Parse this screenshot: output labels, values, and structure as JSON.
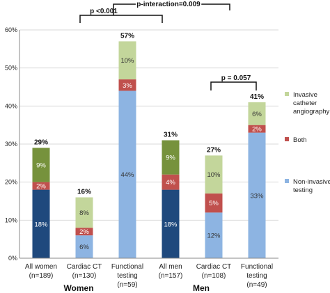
{
  "chart_data": {
    "type": "bar",
    "stacked": true,
    "ylim": [
      0,
      60
    ],
    "y_ticks": [
      "0%",
      "10%",
      "20%",
      "30%",
      "40%",
      "50%",
      "60%"
    ],
    "grid": "horizontal",
    "legend_position": "right",
    "categories": [
      {
        "line1": "All women",
        "line2": "(n=189)",
        "group": "women",
        "dark": true
      },
      {
        "line1": "Cardiac CT",
        "line2": "(n=130)",
        "group": "women",
        "dark": false
      },
      {
        "line1": "Functional",
        "line2": "testing",
        "line3": "(n=59)",
        "group": "women",
        "dark": false
      },
      {
        "line1": "All men",
        "line2": "(n=157)",
        "group": "men",
        "dark": true
      },
      {
        "line1": "Cardiac CT",
        "line2": "(n=108)",
        "group": "men",
        "dark": false
      },
      {
        "line1": "Functional",
        "line2": "testing",
        "line3": "(n=49)",
        "group": "men",
        "dark": false
      }
    ],
    "series": [
      {
        "name": "Non-invasive testing",
        "values": [
          18,
          6,
          44,
          18,
          12,
          33
        ],
        "labels": [
          "18%",
          "6%",
          "44%",
          "18%",
          "12%",
          "33%"
        ],
        "colors": {
          "dark": "#1f497d",
          "light": "#8db4e2"
        }
      },
      {
        "name": "Both",
        "values": [
          2,
          2,
          3,
          4,
          5,
          2
        ],
        "labels": [
          "2%",
          "2%",
          "3%",
          "4%",
          "5%",
          "2%"
        ],
        "colors": {
          "dark": "#c0504d",
          "light": "#c0504d"
        }
      },
      {
        "name": "Invasive catheter angiography",
        "values": [
          9,
          8,
          10,
          9,
          10,
          6
        ],
        "labels": [
          "9%",
          "8%",
          "10%",
          "9%",
          "10%",
          "6%"
        ],
        "colors": {
          "dark": "#76923c",
          "light": "#c3d69b"
        }
      }
    ],
    "totals": [
      "29%",
      "16%",
      "57%",
      "31%",
      "27%",
      "41%"
    ],
    "total_values": [
      29,
      16,
      57,
      31,
      27,
      41
    ],
    "legend": [
      {
        "lines": [
          "Invasive",
          "catheter",
          "angiography"
        ],
        "color": "#c3d69b"
      },
      {
        "lines": [
          "Both"
        ],
        "color": "#c0504d"
      },
      {
        "lines": [
          "Non-invasive",
          "testing"
        ],
        "color": "#8db4e2"
      }
    ],
    "group_labels": {
      "women": "Women",
      "men": "Men"
    },
    "annotations": {
      "p_women": "p <0.001",
      "p_interaction": "p-interaction=0.009",
      "p_men": "p = 0.057"
    }
  }
}
